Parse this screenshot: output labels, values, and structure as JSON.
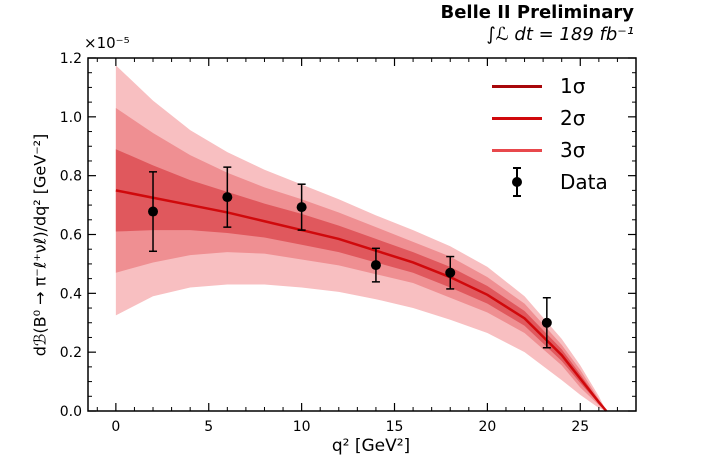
{
  "header": {
    "title": "Belle II Preliminary",
    "luminosity": "∫ℒ dt = 189 fb⁻¹",
    "y_multiplier": "×10⁻⁵"
  },
  "colors": {
    "band_1sigma": "#e0585d",
    "band_2sigma": "#ef8f92",
    "band_3sigma": "#f8bfc1",
    "fit_line": "#d0090c",
    "data_points": "#000000"
  },
  "chart_data": {
    "type": "line",
    "title": "Belle II Preliminary",
    "xlabel": "q² [GeV²]",
    "ylabel": "dℬ(B⁰ → π⁻ℓ⁺νℓ)/dq² [GeV⁻²]",
    "xlim": [
      -1.5,
      28
    ],
    "ylim": [
      0,
      1.2
    ],
    "y_scale_factor": "×10⁻⁵",
    "x_ticks": [
      0,
      5,
      10,
      15,
      20,
      25
    ],
    "y_ticks": [
      0.0,
      0.2,
      0.4,
      0.6,
      0.8,
      1.0,
      1.2
    ],
    "grid": false,
    "legend_position": "top-right",
    "legend": [
      "1σ",
      "2σ",
      "3σ",
      "Data"
    ],
    "fit": {
      "name": "fit",
      "x": [
        0,
        2,
        4,
        6,
        8,
        10,
        12,
        14,
        16,
        18,
        20,
        22,
        24,
        25,
        26,
        26.4
      ],
      "y": [
        0.75,
        0.725,
        0.7,
        0.675,
        0.645,
        0.615,
        0.585,
        0.545,
        0.505,
        0.455,
        0.395,
        0.315,
        0.19,
        0.11,
        0.03,
        0.0
      ]
    },
    "bands": [
      {
        "name": "1σ",
        "upper": [
          0.89,
          0.835,
          0.785,
          0.745,
          0.705,
          0.67,
          0.63,
          0.585,
          0.54,
          0.49,
          0.425,
          0.34,
          0.21,
          0.125,
          0.035,
          0.0
        ],
        "lower": [
          0.61,
          0.615,
          0.615,
          0.605,
          0.59,
          0.565,
          0.54,
          0.505,
          0.47,
          0.42,
          0.365,
          0.29,
          0.17,
          0.095,
          0.025,
          0.0
        ]
      },
      {
        "name": "2σ",
        "upper": [
          1.03,
          0.945,
          0.87,
          0.81,
          0.76,
          0.72,
          0.675,
          0.625,
          0.575,
          0.525,
          0.455,
          0.365,
          0.225,
          0.14,
          0.04,
          0.0
        ],
        "lower": [
          0.47,
          0.505,
          0.53,
          0.54,
          0.535,
          0.515,
          0.495,
          0.465,
          0.435,
          0.385,
          0.335,
          0.265,
          0.155,
          0.08,
          0.02,
          0.0
        ]
      },
      {
        "name": "3σ",
        "upper": [
          1.175,
          1.055,
          0.955,
          0.88,
          0.82,
          0.77,
          0.72,
          0.665,
          0.615,
          0.56,
          0.49,
          0.39,
          0.245,
          0.155,
          0.05,
          0.0
        ],
        "lower": [
          0.325,
          0.39,
          0.42,
          0.43,
          0.43,
          0.42,
          0.405,
          0.38,
          0.35,
          0.31,
          0.265,
          0.2,
          0.105,
          0.055,
          0.01,
          0.0
        ]
      }
    ],
    "data": {
      "name": "Data",
      "x": [
        2,
        6,
        10,
        14,
        18,
        23.2
      ],
      "y": [
        0.678,
        0.727,
        0.693,
        0.496,
        0.47,
        0.3
      ],
      "yerr": [
        0.135,
        0.102,
        0.078,
        0.057,
        0.055,
        0.085
      ]
    }
  }
}
